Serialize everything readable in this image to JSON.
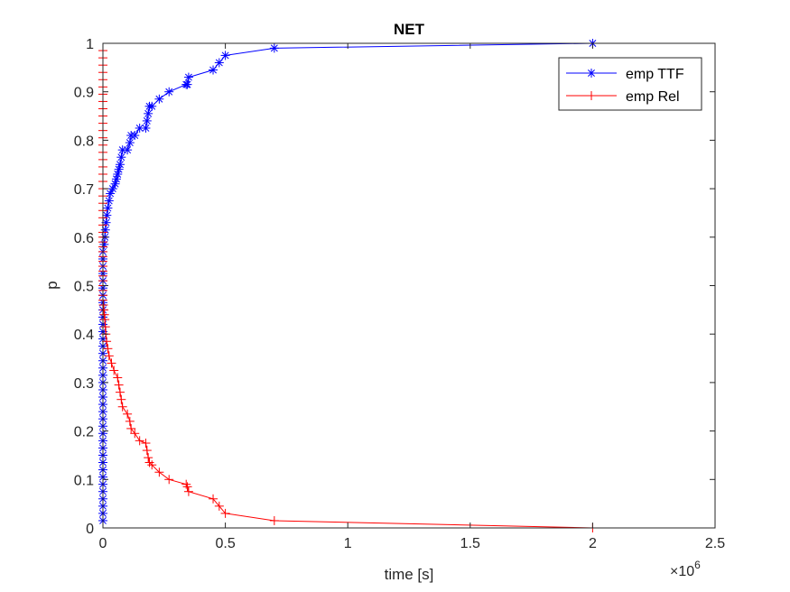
{
  "chart_data": {
    "type": "line",
    "title": "NET",
    "xlabel": "time [s]",
    "ylabel": "p",
    "x_exponent_label": "×10",
    "x_exponent_power": "6",
    "x_scale": 1000000,
    "xlim": [
      0,
      2500000
    ],
    "ylim": [
      0,
      1
    ],
    "x_ticks": [
      0,
      500000,
      1000000,
      1500000,
      2000000,
      2500000
    ],
    "x_tick_labels": [
      "0",
      "0.5",
      "1",
      "1.5",
      "2",
      "2.5"
    ],
    "y_ticks": [
      0,
      0.1,
      0.2,
      0.3,
      0.4,
      0.5,
      0.6,
      0.7,
      0.8,
      0.9,
      1
    ],
    "y_tick_labels": [
      "0",
      "0.1",
      "0.2",
      "0.3",
      "0.4",
      "0.5",
      "0.6",
      "0.7",
      "0.8",
      "0.9",
      "1"
    ],
    "grid": false,
    "legend_position": "top-right",
    "series": [
      {
        "name": "emp TTF",
        "color": "#0000ff",
        "marker": "asterisk",
        "x": [
          0,
          0,
          0,
          0,
          0,
          0,
          0,
          0,
          0,
          0,
          0,
          0,
          0,
          0,
          0,
          0,
          0,
          0,
          0,
          0,
          0,
          0,
          0,
          0,
          0,
          0,
          0,
          0,
          0,
          0,
          0,
          0,
          0,
          0,
          0,
          0,
          0,
          0,
          5000,
          8000,
          10000,
          13000,
          16000,
          20000,
          25000,
          30000,
          40000,
          50000,
          55000,
          60000,
          65000,
          70000,
          75000,
          80000,
          100000,
          110000,
          115000,
          130000,
          150000,
          175000,
          180000,
          185000,
          190000,
          200000,
          230000,
          270000,
          340000,
          345000,
          350000,
          450000,
          475000,
          500000,
          700000,
          2000000
        ],
        "y": [
          0.015,
          0.03,
          0.045,
          0.06,
          0.075,
          0.09,
          0.105,
          0.12,
          0.135,
          0.15,
          0.165,
          0.18,
          0.195,
          0.21,
          0.225,
          0.24,
          0.255,
          0.27,
          0.285,
          0.3,
          0.315,
          0.33,
          0.345,
          0.36,
          0.375,
          0.39,
          0.405,
          0.42,
          0.435,
          0.45,
          0.465,
          0.48,
          0.495,
          0.51,
          0.525,
          0.54,
          0.555,
          0.57,
          0.585,
          0.6,
          0.615,
          0.63,
          0.645,
          0.66,
          0.675,
          0.69,
          0.7,
          0.71,
          0.72,
          0.73,
          0.74,
          0.75,
          0.765,
          0.78,
          0.78,
          0.795,
          0.81,
          0.81,
          0.825,
          0.825,
          0.84,
          0.855,
          0.87,
          0.87,
          0.885,
          0.9,
          0.915,
          0.915,
          0.93,
          0.945,
          0.96,
          0.975,
          0.99,
          1.0
        ]
      },
      {
        "name": "emp Rel",
        "color": "#ff0000",
        "marker": "plus",
        "x": [
          0,
          0,
          0,
          0,
          0,
          0,
          0,
          0,
          0,
          0,
          0,
          0,
          0,
          0,
          0,
          0,
          0,
          0,
          0,
          0,
          0,
          0,
          0,
          0,
          0,
          0,
          0,
          0,
          0,
          0,
          0,
          0,
          0,
          0,
          0,
          0,
          0,
          0,
          0,
          0,
          2000,
          4000,
          6000,
          8000,
          10000,
          12000,
          15000,
          20000,
          25000,
          35000,
          45000,
          60000,
          65000,
          70000,
          75000,
          80000,
          100000,
          110000,
          115000,
          130000,
          150000,
          175000,
          180000,
          185000,
          190000,
          200000,
          230000,
          270000,
          340000,
          345000,
          350000,
          450000,
          475000,
          500000,
          700000,
          2000000
        ],
        "y": [
          0.985,
          0.97,
          0.955,
          0.94,
          0.925,
          0.91,
          0.895,
          0.88,
          0.865,
          0.85,
          0.835,
          0.82,
          0.805,
          0.79,
          0.775,
          0.76,
          0.745,
          0.73,
          0.715,
          0.7,
          0.685,
          0.67,
          0.655,
          0.64,
          0.625,
          0.61,
          0.6,
          0.59,
          0.58,
          0.57,
          0.56,
          0.55,
          0.54,
          0.53,
          0.52,
          0.51,
          0.5,
          0.49,
          0.48,
          0.47,
          0.46,
          0.45,
          0.44,
          0.43,
          0.415,
          0.4,
          0.385,
          0.37,
          0.355,
          0.34,
          0.325,
          0.31,
          0.295,
          0.28,
          0.265,
          0.25,
          0.235,
          0.22,
          0.205,
          0.195,
          0.18,
          0.175,
          0.16,
          0.145,
          0.135,
          0.13,
          0.115,
          0.1,
          0.09,
          0.085,
          0.075,
          0.06,
          0.045,
          0.03,
          0.015,
          0.0
        ]
      }
    ]
  }
}
